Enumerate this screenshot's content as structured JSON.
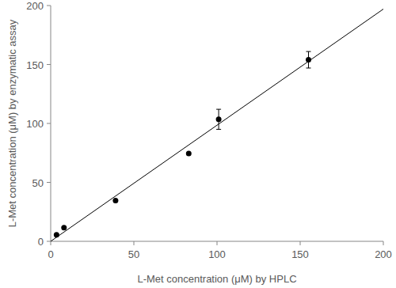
{
  "chart_data": {
    "type": "scatter",
    "x_label": "L-Met concentration (μM) by HPLC",
    "y_label": "L-Met concentration (μM)  by enzymatic assay",
    "xlim": [
      0,
      200
    ],
    "ylim": [
      0,
      200
    ],
    "xticks": [
      0,
      50,
      100,
      150,
      200
    ],
    "yticks": [
      0,
      50,
      100,
      150,
      200
    ],
    "grid": false,
    "series": [
      {
        "type": "scatter",
        "color": "#000000",
        "marker": "circle",
        "x": [
          3.5,
          8,
          39,
          83,
          101,
          155
        ],
        "values": [
          5.5,
          11.5,
          34.5,
          74.5,
          103.5,
          154
        ],
        "errors": [
          null,
          null,
          null,
          null,
          8.5,
          7
        ]
      },
      {
        "type": "line",
        "color": "#000000",
        "line_style": "solid",
        "x": [
          0,
          200
        ],
        "values": [
          0,
          197
        ]
      }
    ]
  }
}
